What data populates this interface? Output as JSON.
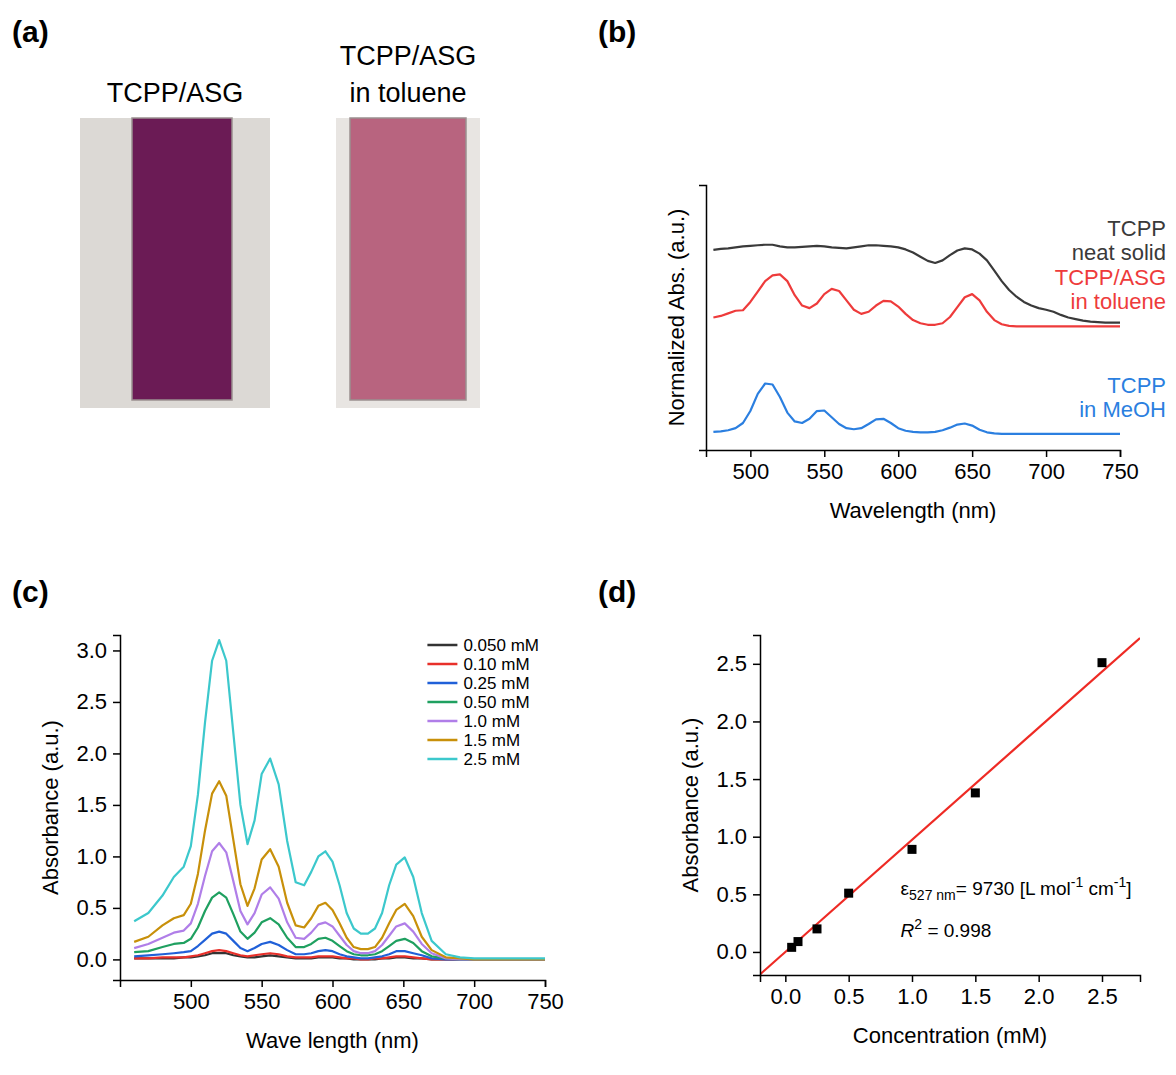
{
  "photo_panel": {
    "panel_label": "(a)",
    "captions": [
      "TCPP/ASG",
      "TCPP/ASG in toluene"
    ]
  },
  "chart_data": [
    {
      "type": "line",
      "panel_label": "(b)",
      "xlabel": "Wavelength (nm)",
      "ylabel": "Normalized Abs. (a.u.)",
      "tick_labels": "x",
      "xlim": [
        470,
        750
      ],
      "ylim": [
        -0.3,
        4.8
      ],
      "xticks": [
        500,
        550,
        600,
        650,
        700,
        750
      ],
      "x": [
        475,
        480,
        485,
        490,
        495,
        500,
        505,
        510,
        515,
        520,
        525,
        530,
        535,
        540,
        545,
        550,
        555,
        560,
        565,
        570,
        575,
        580,
        585,
        590,
        595,
        600,
        605,
        610,
        615,
        620,
        625,
        630,
        635,
        640,
        645,
        650,
        655,
        660,
        665,
        670,
        675,
        680,
        685,
        690,
        695,
        700,
        705,
        710,
        715,
        720,
        725,
        730,
        735,
        740,
        745,
        750
      ],
      "series": [
        {
          "name": "TCPP neat solid",
          "color": "#3a3a3a",
          "values": [
            3.55,
            3.57,
            3.58,
            3.6,
            3.62,
            3.63,
            3.64,
            3.65,
            3.65,
            3.62,
            3.6,
            3.6,
            3.61,
            3.62,
            3.63,
            3.62,
            3.6,
            3.59,
            3.58,
            3.6,
            3.62,
            3.64,
            3.64,
            3.63,
            3.62,
            3.6,
            3.56,
            3.5,
            3.42,
            3.34,
            3.3,
            3.35,
            3.45,
            3.54,
            3.58,
            3.56,
            3.48,
            3.35,
            3.15,
            2.95,
            2.78,
            2.65,
            2.55,
            2.48,
            2.43,
            2.4,
            2.36,
            2.3,
            2.25,
            2.22,
            2.19,
            2.17,
            2.16,
            2.15,
            2.15,
            2.15
          ]
        },
        {
          "name": "TCPP/ASG in toluene",
          "color": "#ee3b3b",
          "values": [
            2.25,
            2.28,
            2.33,
            2.38,
            2.39,
            2.55,
            2.75,
            2.95,
            3.06,
            3.08,
            2.95,
            2.68,
            2.48,
            2.43,
            2.52,
            2.7,
            2.8,
            2.76,
            2.58,
            2.4,
            2.32,
            2.36,
            2.48,
            2.57,
            2.56,
            2.46,
            2.32,
            2.2,
            2.14,
            2.11,
            2.11,
            2.14,
            2.26,
            2.45,
            2.64,
            2.7,
            2.58,
            2.36,
            2.2,
            2.12,
            2.09,
            2.08,
            2.08,
            2.08,
            2.08,
            2.08,
            2.08,
            2.08,
            2.08,
            2.08,
            2.08,
            2.08,
            2.08,
            2.08,
            2.08,
            2.08
          ]
        },
        {
          "name": "TCPP in MeOH",
          "color": "#2b7fe0",
          "values": [
            0.05,
            0.06,
            0.08,
            0.12,
            0.22,
            0.45,
            0.78,
            0.98,
            0.96,
            0.72,
            0.42,
            0.25,
            0.22,
            0.3,
            0.45,
            0.46,
            0.33,
            0.2,
            0.12,
            0.1,
            0.12,
            0.2,
            0.29,
            0.3,
            0.22,
            0.12,
            0.07,
            0.05,
            0.04,
            0.04,
            0.05,
            0.08,
            0.13,
            0.19,
            0.21,
            0.17,
            0.09,
            0.04,
            0.02,
            0.01,
            0.01,
            0.01,
            0.01,
            0.01,
            0.01,
            0.01,
            0.01,
            0.01,
            0.01,
            0.01,
            0.01,
            0.01,
            0.01,
            0.01,
            0.01,
            0.01
          ]
        }
      ]
    },
    {
      "type": "line",
      "panel_label": "(c)",
      "xlabel": "Wave length (nm)",
      "ylabel": "Absorbance (a.u.)",
      "legend": "upper right",
      "xlim": [
        450,
        750
      ],
      "ylim": [
        -0.2,
        3.15
      ],
      "xticks": [
        500,
        550,
        600,
        650,
        700,
        750
      ],
      "yticks": [
        {
          "value": 0,
          "label": "0.0"
        },
        {
          "value": 0.5,
          "label": "0.5"
        },
        {
          "value": 1,
          "label": "1.0"
        },
        {
          "value": 1.5,
          "label": "1.5"
        },
        {
          "value": 2,
          "label": "2.0"
        },
        {
          "value": 2.5,
          "label": "2.5"
        },
        {
          "value": 3,
          "label": "3.0"
        }
      ],
      "x": [
        460,
        470,
        480,
        488,
        495,
        500,
        505,
        510,
        515,
        520,
        525,
        530,
        535,
        540,
        545,
        550,
        556,
        562,
        568,
        574,
        580,
        585,
        590,
        595,
        600,
        605,
        610,
        615,
        620,
        625,
        630,
        635,
        640,
        645,
        651,
        657,
        663,
        670,
        680,
        690,
        700,
        720,
        750
      ],
      "series": [
        {
          "name": "0.050 mM",
          "color": "#333333",
          "values": [
            0.01,
            0.01,
            0.01,
            0.01,
            0.02,
            0.02,
            0.03,
            0.04,
            0.06,
            0.06,
            0.06,
            0.04,
            0.03,
            0.02,
            0.02,
            0.03,
            0.04,
            0.03,
            0.02,
            0.01,
            0.01,
            0.01,
            0.02,
            0.02,
            0.02,
            0.01,
            0.01,
            0,
            0,
            0,
            0,
            0.01,
            0.01,
            0.02,
            0.02,
            0.01,
            0.01,
            0,
            0,
            0,
            0,
            0,
            0
          ]
        },
        {
          "name": "0.10 mM",
          "color": "#e8302a",
          "values": [
            0.01,
            0.01,
            0.02,
            0.02,
            0.02,
            0.03,
            0.04,
            0.06,
            0.08,
            0.09,
            0.08,
            0.06,
            0.04,
            0.03,
            0.04,
            0.05,
            0.06,
            0.05,
            0.03,
            0.02,
            0.02,
            0.02,
            0.03,
            0.03,
            0.03,
            0.02,
            0.01,
            0.01,
            0,
            0,
            0.01,
            0.01,
            0.02,
            0.03,
            0.03,
            0.02,
            0.01,
            0,
            0,
            0,
            0,
            0,
            0
          ]
        },
        {
          "name": "0.25 mM",
          "color": "#2060d8",
          "values": [
            0.03,
            0.04,
            0.05,
            0.06,
            0.07,
            0.08,
            0.13,
            0.19,
            0.25,
            0.27,
            0.25,
            0.18,
            0.11,
            0.08,
            0.11,
            0.15,
            0.17,
            0.14,
            0.09,
            0.05,
            0.05,
            0.06,
            0.08,
            0.09,
            0.08,
            0.05,
            0.03,
            0.02,
            0.01,
            0.01,
            0.02,
            0.03,
            0.05,
            0.08,
            0.08,
            0.06,
            0.04,
            0.01,
            0,
            0,
            0,
            0,
            0
          ]
        },
        {
          "name": "0.50 mM",
          "color": "#1fa060",
          "values": [
            0.07,
            0.08,
            0.12,
            0.15,
            0.16,
            0.2,
            0.31,
            0.47,
            0.6,
            0.65,
            0.6,
            0.44,
            0.27,
            0.2,
            0.26,
            0.36,
            0.4,
            0.34,
            0.21,
            0.12,
            0.12,
            0.15,
            0.2,
            0.21,
            0.18,
            0.13,
            0.08,
            0.05,
            0.04,
            0.04,
            0.05,
            0.08,
            0.13,
            0.18,
            0.2,
            0.16,
            0.08,
            0.03,
            0.01,
            0,
            0,
            0,
            0
          ]
        },
        {
          "name": "1.0 mM",
          "color": "#b07ee8",
          "values": [
            0.11,
            0.15,
            0.21,
            0.26,
            0.28,
            0.35,
            0.54,
            0.81,
            1.05,
            1.13,
            1.04,
            0.76,
            0.47,
            0.34,
            0.45,
            0.63,
            0.7,
            0.59,
            0.36,
            0.21,
            0.2,
            0.26,
            0.34,
            0.36,
            0.32,
            0.23,
            0.14,
            0.08,
            0.06,
            0.06,
            0.08,
            0.14,
            0.23,
            0.32,
            0.35,
            0.27,
            0.15,
            0.06,
            0.01,
            0,
            0,
            0,
            0
          ]
        },
        {
          "name": "1.5 mM",
          "color": "#c8900a",
          "values": [
            0.17,
            0.22,
            0.33,
            0.4,
            0.43,
            0.54,
            0.83,
            1.25,
            1.61,
            1.73,
            1.59,
            1.16,
            0.73,
            0.52,
            0.69,
            0.97,
            1.07,
            0.9,
            0.55,
            0.33,
            0.31,
            0.4,
            0.52,
            0.55,
            0.48,
            0.35,
            0.21,
            0.12,
            0.1,
            0.1,
            0.12,
            0.21,
            0.35,
            0.48,
            0.54,
            0.42,
            0.22,
            0.09,
            0.02,
            0.01,
            0,
            0,
            0
          ]
        },
        {
          "name": "2.5 mM",
          "color": "#3cc8cc",
          "values": [
            0.37,
            0.45,
            0.62,
            0.8,
            0.9,
            1.1,
            1.6,
            2.3,
            2.9,
            3.1,
            2.9,
            2.2,
            1.5,
            1.12,
            1.35,
            1.8,
            1.95,
            1.7,
            1.15,
            0.75,
            0.72,
            0.85,
            1,
            1.05,
            0.95,
            0.72,
            0.45,
            0.3,
            0.25,
            0.25,
            0.3,
            0.45,
            0.72,
            0.92,
            0.99,
            0.8,
            0.45,
            0.18,
            0.05,
            0.02,
            0.01,
            0.01,
            0.01
          ]
        }
      ]
    },
    {
      "type": "scatter",
      "panel_label": "(d)",
      "xlabel": "Concentration (mM)",
      "ylabel": "Absorbance (a.u.)",
      "xlim": [
        -0.2,
        2.8
      ],
      "ylim": [
        -0.2,
        2.75
      ],
      "xticks": [
        {
          "value": 0,
          "label": "0.0"
        },
        {
          "value": 0.5,
          "label": "0.5"
        },
        {
          "value": 1,
          "label": "1.0"
        },
        {
          "value": 1.5,
          "label": "1.5"
        },
        {
          "value": 2,
          "label": "2.0"
        },
        {
          "value": 2.5,
          "label": "2.5"
        }
      ],
      "yticks": [
        {
          "value": 0,
          "label": "0.0"
        },
        {
          "value": 0.5,
          "label": "0.5"
        },
        {
          "value": 1,
          "label": "1.0"
        },
        {
          "value": 1.5,
          "label": "1.5"
        },
        {
          "value": 2,
          "label": "2.0"
        },
        {
          "value": 2.5,
          "label": "2.5"
        }
      ],
      "x": [
        0.05,
        0.1,
        0.25,
        0.5,
        1,
        1.5,
        2.5
      ],
      "values": [
        0.04,
        0.09,
        0.2,
        0.51,
        0.89,
        1.38,
        2.51
      ],
      "color": "#000000",
      "marker": "square",
      "fit": {
        "x": [
          -0.2,
          2.8
        ],
        "values": [
          -0.195,
          2.724
        ],
        "color": "#ee2a24"
      },
      "annotations": [
        {
          "parts": [
            "ε",
            {
              "sub": "527 nm"
            },
            "= 9730 [L mol",
            {
              "sup": "-1"
            },
            " cm",
            {
              "sup": "-1"
            },
            "]"
          ]
        },
        {
          "parts": [
            {
              "italic": "R"
            },
            {
              "sup": "2"
            },
            " = 0.998"
          ]
        }
      ]
    }
  ]
}
